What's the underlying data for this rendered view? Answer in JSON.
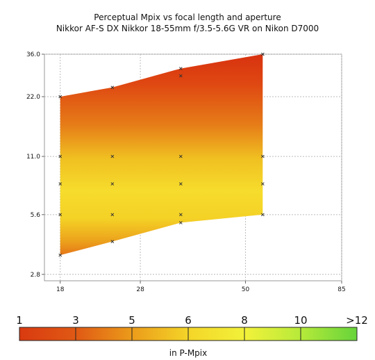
{
  "chart_data": {
    "type": "heatmap",
    "title": "Perceptual Mpix vs focal length and aperture",
    "subtitle": "Nikkor AF-S DX Nikkor 18-55mm f/3.5-5.6G VR on Nikon D7000",
    "x_scale": "log",
    "y_scale": "log",
    "xlim": [
      16.5,
      85
    ],
    "ylim": [
      2.6,
      36.0
    ],
    "x_ticks": [
      "18",
      "28",
      "50",
      "85"
    ],
    "y_ticks": [
      "2.8",
      "5.6",
      "11.0",
      "22.0",
      "36.0"
    ],
    "grid": true,
    "region": {
      "top_edge": [
        [
          18,
          22.0
        ],
        [
          24,
          24.5
        ],
        [
          35,
          30.5
        ],
        [
          55,
          36.0
        ]
      ],
      "bottom_edge": [
        [
          18,
          3.5
        ],
        [
          24,
          4.1
        ],
        [
          35,
          5.1
        ],
        [
          55,
          5.6
        ]
      ]
    },
    "samples": [
      {
        "x": 18,
        "y": [
          3.5,
          5.6,
          8.0,
          11.0,
          22.0
        ]
      },
      {
        "x": 24,
        "y": [
          4.1,
          5.6,
          8.0,
          11.0,
          24.5
        ]
      },
      {
        "x": 35,
        "y": [
          5.1,
          5.6,
          8.0,
          11.0,
          28.0,
          30.5
        ]
      },
      {
        "x": 55,
        "y": [
          5.6,
          8.0,
          11.0,
          36.0
        ]
      }
    ],
    "colorbar": {
      "tick_labels": [
        "1",
        "3",
        "5",
        "6",
        "8",
        "10",
        ">12"
      ],
      "unit_label": "in P-Mpix",
      "colors": [
        "#d93a10",
        "#e05a14",
        "#eb9a1a",
        "#f4d528",
        "#f2f23a",
        "#b8ea3a",
        "#66d43a"
      ]
    }
  }
}
